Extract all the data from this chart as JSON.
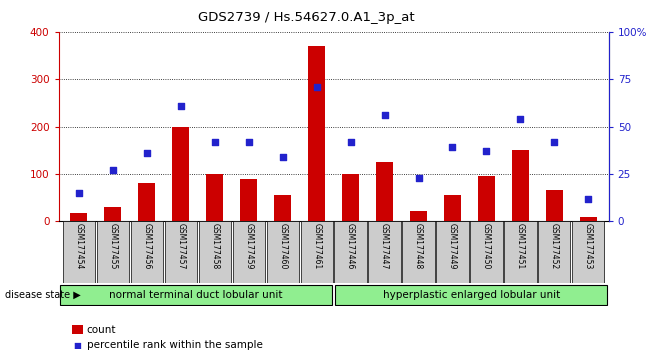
{
  "title": "GDS2739 / Hs.54627.0.A1_3p_at",
  "samples": [
    "GSM177454",
    "GSM177455",
    "GSM177456",
    "GSM177457",
    "GSM177458",
    "GSM177459",
    "GSM177460",
    "GSM177461",
    "GSM177446",
    "GSM177447",
    "GSM177448",
    "GSM177449",
    "GSM177450",
    "GSM177451",
    "GSM177452",
    "GSM177453"
  ],
  "counts": [
    18,
    30,
    80,
    200,
    100,
    90,
    55,
    370,
    100,
    125,
    22,
    55,
    95,
    150,
    65,
    10
  ],
  "percentiles": [
    15,
    27,
    36,
    61,
    42,
    42,
    34,
    71,
    42,
    56,
    23,
    39,
    37,
    54,
    42,
    12
  ],
  "group1_label": "normal terminal duct lobular unit",
  "group2_label": "hyperplastic enlarged lobular unit",
  "group1_count": 8,
  "group2_count": 8,
  "bar_color": "#cc0000",
  "dot_color": "#2222cc",
  "ylim_left": [
    0,
    400
  ],
  "yticks_left": [
    0,
    100,
    200,
    300,
    400
  ],
  "ytick_labels_left": [
    "0",
    "100",
    "200",
    "300",
    "400"
  ],
  "ylim_right": [
    0,
    100
  ],
  "yticks_right": [
    0,
    25,
    50,
    75,
    100
  ],
  "ytick_labels_right": [
    "0",
    "25",
    "50",
    "75",
    "100%"
  ],
  "group1_color": "#90ee90",
  "group2_color": "#90ee90",
  "disease_state_label": "disease state",
  "legend_count_label": "count",
  "legend_percentile_label": "percentile rank within the sample",
  "bar_width": 0.5,
  "xticklabel_bg": "#cccccc"
}
